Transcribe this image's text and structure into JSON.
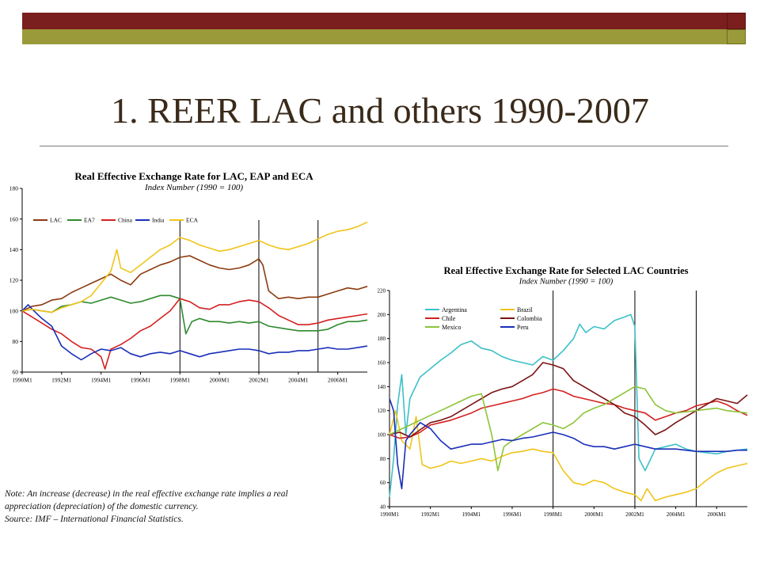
{
  "slide": {
    "title": "1. REER LAC and others 1990-2007",
    "note_lines": [
      "Note: An increase (decrease) in the real effective exchange rate implies a real",
      "appreciation (depreciation) of  the domestic currency.",
      "Source: IMF – International Financial Statistics."
    ]
  },
  "chart_data": [
    {
      "type": "line",
      "title": "Real Effective Exchange Rate for LAC, EAP and ECA",
      "subtitle": "Index Number (1990 = 100)",
      "xlabel": "",
      "ylabel": "",
      "ylim": [
        60,
        180
      ],
      "yticks": [
        60,
        80,
        100,
        120,
        140,
        160,
        180
      ],
      "xticks": [
        "1990M1",
        "1992M1",
        "1994M1",
        "1996M1",
        "1998M1",
        "2000M1",
        "2002M1",
        "2004M1",
        "2006M1"
      ],
      "xrange": [
        1990.0,
        2007.5
      ],
      "vlines": [
        1998.0,
        2002.0,
        2005.0
      ],
      "legend_position": "top-left",
      "series": [
        {
          "name": "LAC",
          "color": "#8b3a0f",
          "x": [
            1990.0,
            1990.5,
            1991.0,
            1991.5,
            1992.0,
            1992.5,
            1993.0,
            1993.5,
            1994.0,
            1994.5,
            1995.0,
            1995.5,
            1996.0,
            1996.5,
            1997.0,
            1997.5,
            1998.0,
            1998.5,
            1999.0,
            1999.5,
            2000.0,
            2000.5,
            2001.0,
            2001.5,
            2002.0,
            2002.2,
            2002.5,
            2003.0,
            2003.5,
            2004.0,
            2004.5,
            2005.0,
            2005.5,
            2006.0,
            2006.5,
            2007.0,
            2007.5
          ],
          "y": [
            100,
            103,
            104,
            107,
            108,
            112,
            115,
            118,
            121,
            124,
            120,
            117,
            124,
            127,
            130,
            132,
            135,
            136,
            133,
            130,
            128,
            127,
            128,
            130,
            134,
            130,
            113,
            108,
            109,
            108,
            109,
            109,
            111,
            113,
            115,
            114,
            116
          ]
        },
        {
          "name": "EA7",
          "color": "#2f8a2f",
          "x": [
            1990.0,
            1990.5,
            1991.0,
            1991.5,
            1992.0,
            1992.5,
            1993.0,
            1993.5,
            1994.0,
            1994.5,
            1995.0,
            1995.5,
            1996.0,
            1996.5,
            1997.0,
            1997.5,
            1998.0,
            1998.3,
            1998.6,
            1999.0,
            1999.5,
            2000.0,
            2000.5,
            2001.0,
            2001.5,
            2002.0,
            2002.5,
            2003.0,
            2003.5,
            2004.0,
            2004.5,
            2005.0,
            2005.5,
            2006.0,
            2006.5,
            2007.0,
            2007.5
          ],
          "y": [
            100,
            101,
            100,
            99,
            103,
            104,
            106,
            105,
            107,
            109,
            107,
            105,
            106,
            108,
            110,
            110,
            108,
            85,
            93,
            95,
            93,
            93,
            92,
            93,
            92,
            93,
            90,
            89,
            88,
            87,
            87,
            87,
            88,
            91,
            93,
            93,
            94
          ]
        },
        {
          "name": "China",
          "color": "#d42020",
          "x": [
            1990.0,
            1990.5,
            1991.0,
            1991.5,
            1992.0,
            1992.5,
            1993.0,
            1993.5,
            1994.0,
            1994.2,
            1994.5,
            1995.0,
            1995.5,
            1996.0,
            1996.5,
            1997.0,
            1997.5,
            1998.0,
            1998.5,
            1999.0,
            1999.5,
            2000.0,
            2000.5,
            2001.0,
            2001.5,
            2002.0,
            2002.5,
            2003.0,
            2003.5,
            2004.0,
            2004.5,
            2005.0,
            2005.5,
            2006.0,
            2006.5,
            2007.0,
            2007.5
          ],
          "y": [
            100,
            96,
            92,
            88,
            85,
            80,
            76,
            75,
            70,
            62,
            75,
            78,
            82,
            87,
            90,
            95,
            100,
            108,
            106,
            102,
            101,
            104,
            104,
            106,
            107,
            106,
            102,
            97,
            94,
            91,
            91,
            92,
            94,
            95,
            96,
            97,
            98
          ]
        },
        {
          "name": "India",
          "color": "#1a2fb8",
          "x": [
            1990.0,
            1990.3,
            1990.6,
            1991.0,
            1991.5,
            1992.0,
            1992.5,
            1993.0,
            1993.5,
            1994.0,
            1994.5,
            1995.0,
            1995.5,
            1996.0,
            1996.5,
            1997.0,
            1997.5,
            1998.0,
            1998.5,
            1999.0,
            1999.5,
            2000.0,
            2000.5,
            2001.0,
            2001.5,
            2002.0,
            2002.5,
            2003.0,
            2003.5,
            2004.0,
            2004.5,
            2005.0,
            2005.5,
            2006.0,
            2006.5,
            2007.0,
            2007.5
          ],
          "y": [
            100,
            104,
            100,
            95,
            90,
            77,
            72,
            68,
            72,
            75,
            74,
            76,
            72,
            70,
            72,
            73,
            72,
            74,
            72,
            70,
            72,
            73,
            74,
            75,
            75,
            74,
            72,
            73,
            73,
            74,
            74,
            75,
            76,
            75,
            75,
            76,
            77
          ]
        },
        {
          "name": "ECA",
          "color": "#f0c419",
          "x": [
            1990.0,
            1990.5,
            1991.0,
            1991.5,
            1992.0,
            1992.5,
            1993.0,
            1993.5,
            1994.0,
            1994.5,
            1994.8,
            1995.0,
            1995.5,
            1996.0,
            1996.5,
            1997.0,
            1997.5,
            1998.0,
            1998.5,
            1999.0,
            1999.5,
            2000.0,
            2000.5,
            2001.0,
            2001.5,
            2002.0,
            2002.5,
            2003.0,
            2003.5,
            2004.0,
            2004.5,
            2005.0,
            2005.5,
            2006.0,
            2006.5,
            2007.0,
            2007.5
          ],
          "y": [
            100,
            101,
            100,
            99,
            102,
            104,
            106,
            110,
            118,
            126,
            140,
            128,
            125,
            130,
            135,
            140,
            143,
            148,
            146,
            143,
            141,
            139,
            140,
            142,
            144,
            146,
            143,
            141,
            140,
            142,
            144,
            147,
            150,
            152,
            153,
            155,
            158
          ]
        }
      ]
    },
    {
      "type": "line",
      "title": "Real Effective Exchange Rate for Selected LAC Countries",
      "subtitle": "Index Number (1990 = 100)",
      "xlabel": "",
      "ylabel": "",
      "ylim": [
        40,
        220
      ],
      "yticks": [
        40,
        60,
        80,
        100,
        120,
        140,
        160,
        180,
        200,
        220
      ],
      "xticks": [
        "1990M1",
        "1992M1",
        "1994M1",
        "1996M1",
        "1998M1",
        "2000M1",
        "2002M1",
        "2004M1",
        "2006M1"
      ],
      "xrange": [
        1990.0,
        2007.5
      ],
      "vlines": [
        1998.0,
        2002.0,
        2005.0
      ],
      "legend_position": "top-left",
      "series": [
        {
          "name": "Argentina",
          "color": "#3cc0c8",
          "x": [
            1990.0,
            1990.2,
            1990.4,
            1990.6,
            1990.8,
            1991.0,
            1991.5,
            1992.0,
            1992.5,
            1993.0,
            1993.5,
            1994.0,
            1994.5,
            1995.0,
            1995.5,
            1996.0,
            1996.5,
            1997.0,
            1997.5,
            1998.0,
            1998.5,
            1999.0,
            1999.3,
            1999.6,
            2000.0,
            2000.5,
            2001.0,
            2001.5,
            2001.8,
            2002.0,
            2002.2,
            2002.5,
            2003.0,
            2003.5,
            2004.0,
            2004.5,
            2005.0,
            2005.5,
            2006.0,
            2006.5,
            2007.0,
            2007.5
          ],
          "y": [
            48,
            80,
            125,
            150,
            100,
            130,
            148,
            155,
            162,
            168,
            175,
            178,
            172,
            170,
            165,
            162,
            160,
            158,
            165,
            162,
            170,
            180,
            192,
            185,
            190,
            188,
            195,
            198,
            200,
            190,
            80,
            70,
            88,
            90,
            92,
            88,
            86,
            85,
            84,
            86,
            87,
            88
          ]
        },
        {
          "name": "Brazil",
          "color": "#f0c419",
          "x": [
            1990.0,
            1990.3,
            1990.6,
            1991.0,
            1991.3,
            1991.6,
            1992.0,
            1992.5,
            1993.0,
            1993.5,
            1994.0,
            1994.5,
            1995.0,
            1995.5,
            1996.0,
            1996.5,
            1997.0,
            1997.5,
            1998.0,
            1998.5,
            1999.0,
            1999.5,
            2000.0,
            2000.5,
            2001.0,
            2001.5,
            2002.0,
            2002.3,
            2002.6,
            2003.0,
            2003.5,
            2004.0,
            2004.5,
            2005.0,
            2005.5,
            2006.0,
            2006.5,
            2007.0,
            2007.5
          ],
          "y": [
            100,
            120,
            95,
            88,
            115,
            75,
            72,
            74,
            78,
            76,
            78,
            80,
            78,
            82,
            85,
            86,
            88,
            86,
            85,
            70,
            60,
            58,
            62,
            60,
            55,
            52,
            50,
            45,
            55,
            45,
            48,
            50,
            52,
            55,
            62,
            68,
            72,
            74,
            76
          ]
        },
        {
          "name": "Chile",
          "color": "#d42020",
          "x": [
            1990.0,
            1990.5,
            1991.0,
            1991.5,
            1992.0,
            1992.5,
            1993.0,
            1993.5,
            1994.0,
            1994.5,
            1995.0,
            1995.5,
            1996.0,
            1996.5,
            1997.0,
            1997.5,
            1998.0,
            1998.5,
            1999.0,
            1999.5,
            2000.0,
            2000.5,
            2001.0,
            2001.5,
            2002.0,
            2002.5,
            2003.0,
            2003.5,
            2004.0,
            2004.5,
            2005.0,
            2005.5,
            2006.0,
            2006.5,
            2007.0,
            2007.5
          ],
          "y": [
            100,
            97,
            98,
            102,
            108,
            110,
            112,
            115,
            118,
            122,
            124,
            126,
            128,
            130,
            133,
            135,
            138,
            136,
            132,
            130,
            128,
            126,
            125,
            122,
            120,
            118,
            112,
            115,
            118,
            120,
            124,
            126,
            128,
            125,
            120,
            116
          ]
        },
        {
          "name": "Colombia",
          "color": "#7a1414",
          "x": [
            1990.0,
            1990.5,
            1991.0,
            1991.5,
            1992.0,
            1992.5,
            1993.0,
            1993.5,
            1994.0,
            1994.5,
            1995.0,
            1995.5,
            1996.0,
            1996.5,
            1997.0,
            1997.5,
            1998.0,
            1998.5,
            1999.0,
            1999.5,
            2000.0,
            2000.5,
            2001.0,
            2001.5,
            2002.0,
            2002.5,
            2003.0,
            2003.5,
            2004.0,
            2004.5,
            2005.0,
            2005.5,
            2006.0,
            2006.5,
            2007.0,
            2007.5
          ],
          "y": [
            100,
            102,
            98,
            104,
            110,
            112,
            115,
            120,
            125,
            130,
            135,
            138,
            140,
            145,
            150,
            160,
            158,
            155,
            145,
            140,
            135,
            130,
            125,
            118,
            115,
            108,
            100,
            104,
            110,
            115,
            120,
            125,
            130,
            128,
            126,
            133
          ]
        },
        {
          "name": "Mexico",
          "color": "#8cc43a",
          "x": [
            1990.0,
            1990.5,
            1991.0,
            1991.5,
            1992.0,
            1992.5,
            1993.0,
            1993.5,
            1994.0,
            1994.5,
            1995.0,
            1995.3,
            1995.6,
            1996.0,
            1996.5,
            1997.0,
            1997.5,
            1998.0,
            1998.5,
            1999.0,
            1999.5,
            2000.0,
            2000.5,
            2001.0,
            2001.5,
            2002.0,
            2002.5,
            2003.0,
            2003.5,
            2004.0,
            2004.5,
            2005.0,
            2005.5,
            2006.0,
            2006.5,
            2007.0,
            2007.5
          ],
          "y": [
            100,
            104,
            108,
            112,
            116,
            120,
            124,
            128,
            132,
            134,
            100,
            70,
            90,
            95,
            100,
            105,
            110,
            108,
            105,
            110,
            118,
            122,
            125,
            130,
            135,
            140,
            138,
            125,
            120,
            118,
            119,
            120,
            121,
            122,
            120,
            119,
            118
          ]
        },
        {
          "name": "Peru",
          "color": "#1a2fb8",
          "x": [
            1990.0,
            1990.2,
            1990.4,
            1990.6,
            1990.8,
            1991.0,
            1991.5,
            1992.0,
            1992.5,
            1993.0,
            1993.5,
            1994.0,
            1994.5,
            1995.0,
            1995.5,
            1996.0,
            1996.5,
            1997.0,
            1997.5,
            1998.0,
            1998.5,
            1999.0,
            1999.5,
            2000.0,
            2000.5,
            2001.0,
            2001.5,
            2002.0,
            2002.5,
            2003.0,
            2003.5,
            2004.0,
            2004.5,
            2005.0,
            2005.5,
            2006.0,
            2006.5,
            2007.0,
            2007.5
          ],
          "y": [
            130,
            120,
            75,
            55,
            95,
            100,
            110,
            105,
            95,
            88,
            90,
            92,
            92,
            94,
            96,
            95,
            97,
            98,
            100,
            102,
            100,
            97,
            92,
            90,
            90,
            88,
            90,
            92,
            90,
            88,
            88,
            88,
            87,
            86,
            86,
            86,
            86,
            87,
            87
          ]
        }
      ]
    }
  ]
}
